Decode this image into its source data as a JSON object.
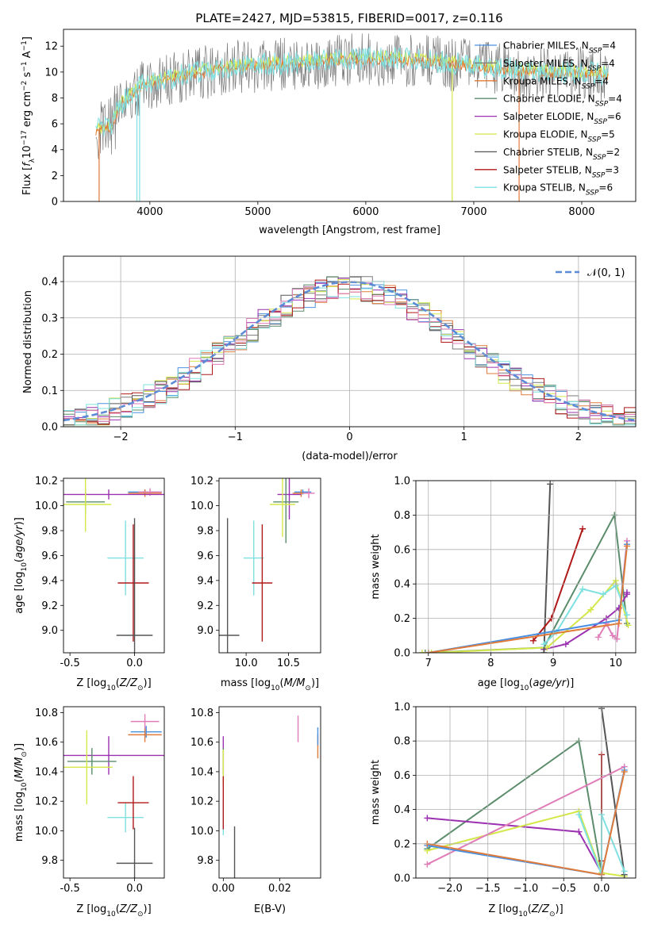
{
  "figure_title": "PLATE=2427, MJD=53815, FIBERID=0017, z=0.116",
  "colors": {
    "chabrier_miles": "#4a90e2",
    "salpeter_miles": "#7a7a7a",
    "kroupa_miles": "#e07b39",
    "chabrier_elodie": "#5b8c6b",
    "salpeter_elodie": "#9b30b0",
    "kroupa_elodie": "#d4e84a",
    "chabrier_stelib": "#555555",
    "salpeter_stelib": "#b01818",
    "kroupa_stelib": "#7ee0e0",
    "pink": "#e07cb8",
    "normal_curve": "#5b8bd6"
  },
  "chart_data": [
    {
      "id": "spectrum",
      "type": "line",
      "title": "PLATE=2427, MJD=53815, FIBERID=0017, z=0.116",
      "xlabel": "wavelength [Angstrom, rest frame]",
      "ylabel": "Flux [f_λ 10^-17 erg cm^-2 s^-1 A^-1]",
      "xlim": [
        3200,
        8500
      ],
      "ylim": [
        0,
        13.3
      ],
      "xticks": [
        4000,
        5000,
        6000,
        7000,
        8000
      ],
      "yticks": [
        0,
        2,
        4,
        6,
        8,
        10,
        12
      ],
      "grid": false,
      "legend_position": "right",
      "legend": [
        {
          "label": "Chabrier MILES, N",
          "sub": "SSP",
          "suffix": "=4",
          "color": "#4a90e2"
        },
        {
          "label": "Salpeter MILES, N",
          "sub": "SSP",
          "suffix": "=4",
          "color": "#7a7a7a"
        },
        {
          "label": "Kroupa MILES, N",
          "sub": "SSP",
          "suffix": "=4",
          "color": "#e07b39"
        },
        {
          "label": "Chabrier ELODIE, N",
          "sub": "SSP",
          "suffix": "=4",
          "color": "#5b8c6b"
        },
        {
          "label": "Salpeter ELODIE, N",
          "sub": "SSP",
          "suffix": "=6",
          "color": "#9b30b0"
        },
        {
          "label": "Kroupa ELODIE, N",
          "sub": "SSP",
          "suffix": "=5",
          "color": "#d4e84a"
        },
        {
          "label": "Chabrier STELIB, N",
          "sub": "SSP",
          "suffix": "=2",
          "color": "#555555"
        },
        {
          "label": "Salpeter STELIB, N",
          "sub": "SSP",
          "suffix": "=3",
          "color": "#b01818"
        },
        {
          "label": "Kroupa STELIB, N",
          "sub": "SSP",
          "suffix": "=6",
          "color": "#7ee0e0"
        }
      ],
      "continuum_points": [
        [
          3500,
          5.4
        ],
        [
          3650,
          5.8
        ],
        [
          3700,
          7.0
        ],
        [
          3800,
          8.0
        ],
        [
          3950,
          9.0
        ],
        [
          4100,
          9.3
        ],
        [
          4400,
          9.8
        ],
        [
          4800,
          10.4
        ],
        [
          5300,
          10.6
        ],
        [
          5800,
          10.9
        ],
        [
          6200,
          11.0
        ],
        [
          6600,
          10.8
        ],
        [
          7000,
          10.4
        ],
        [
          7400,
          10.1
        ],
        [
          7800,
          9.9
        ],
        [
          8250,
          9.8
        ]
      ]
    },
    {
      "id": "residual_histogram",
      "type": "line",
      "xlabel": "(data-model)/error",
      "ylabel": "Normed distribution",
      "xlim": [
        -2.5,
        2.5
      ],
      "ylim": [
        0,
        0.47
      ],
      "xticks": [
        -2,
        -1,
        0,
        1,
        2
      ],
      "xtick_labels": [
        "−2",
        "−1",
        "0",
        "1",
        "2"
      ],
      "yticks": [
        0.0,
        0.1,
        0.2,
        0.3,
        0.4
      ],
      "grid": true,
      "legend_position": "top-right",
      "legend_label": "𝒩(0, 1)",
      "bins": 50
    },
    {
      "id": "age_vs_Z",
      "type": "scatter",
      "xlabel": "Z [log10(Z/Z☉)]",
      "ylabel": "age  [log10(age/yr)]",
      "xlim": [
        -0.55,
        0.23
      ],
      "ylim": [
        8.82,
        10.22
      ],
      "xticks": [
        -0.5,
        0.0
      ],
      "yticks": [
        9.0,
        9.2,
        9.4,
        9.6,
        9.8,
        10.0,
        10.2
      ],
      "points": [
        {
          "color": "#4a90e2",
          "x": 0.08,
          "xerr": 0.13,
          "y": 10.11,
          "yerr": 0.02
        },
        {
          "color": "#e07b39",
          "x": 0.08,
          "xerr": 0.13,
          "y": 10.1,
          "yerr": 0.03
        },
        {
          "color": "#e07cb8",
          "x": 0.12,
          "xerr": 0.09,
          "y": 10.11,
          "yerr": 0.03
        },
        {
          "color": "#9b30b0",
          "x": -0.2,
          "xerr": 0.5,
          "y": 10.09,
          "yerr": 0.04
        },
        {
          "color": "#5b8c6b",
          "x": -0.38,
          "xerr": 0.15,
          "y": 10.03,
          "yerr": 0.1
        },
        {
          "color": "#d4e84a",
          "x": -0.38,
          "xerr": 0.2,
          "y": 10.01,
          "yerr": 0.22
        },
        {
          "color": "#7ee0e0",
          "x": -0.07,
          "xerr": 0.14,
          "y": 9.58,
          "yerr": 0.3
        },
        {
          "color": "#b01818",
          "x": -0.01,
          "xerr": 0.12,
          "y": 9.38,
          "yerr": 0.47
        },
        {
          "color": "#555555",
          "x": 0.0,
          "xerr": 0.14,
          "y": 8.96,
          "yerr": 0.94
        }
      ]
    },
    {
      "id": "age_vs_mass",
      "type": "scatter",
      "xlabel": "mass [log10(M/M☉)]",
      "xlim": [
        9.68,
        10.88
      ],
      "ylim": [
        8.82,
        10.22
      ],
      "xticks": [
        10.0,
        10.5
      ],
      "yticks": [
        9.0,
        9.2,
        9.4,
        9.6,
        9.8,
        10.0,
        10.2
      ],
      "points": [
        {
          "color": "#4a90e2",
          "x": 10.67,
          "xerr": 0.1,
          "y": 10.11,
          "yerr": 0.02
        },
        {
          "color": "#e07b39",
          "x": 10.65,
          "xerr": 0.1,
          "y": 10.1,
          "yerr": 0.03
        },
        {
          "color": "#e07cb8",
          "x": 10.74,
          "xerr": 0.07,
          "y": 10.1,
          "yerr": 0.04
        },
        {
          "color": "#9b30b0",
          "x": 10.51,
          "xerr": 0.14,
          "y": 10.09,
          "yerr": 0.2
        },
        {
          "color": "#5b8c6b",
          "x": 10.47,
          "xerr": 0.15,
          "y": 10.03,
          "yerr": 0.33
        },
        {
          "color": "#d4e84a",
          "x": 10.43,
          "xerr": 0.15,
          "y": 10.01,
          "yerr": 0.26
        },
        {
          "color": "#7ee0e0",
          "x": 10.09,
          "xerr": 0.12,
          "y": 9.58,
          "yerr": 0.3
        },
        {
          "color": "#b01818",
          "x": 10.19,
          "xerr": 0.12,
          "y": 9.38,
          "yerr": 0.47
        },
        {
          "color": "#555555",
          "x": 9.78,
          "xerr": 0.14,
          "y": 8.96,
          "yerr": 0.94
        }
      ]
    },
    {
      "id": "mass_weight_vs_age",
      "type": "line",
      "xlabel": "age  [log10(age/yr)]",
      "ylabel": "mass weight",
      "xlim": [
        6.8,
        10.32
      ],
      "ylim": [
        0,
        1.0
      ],
      "xticks": [
        7,
        8,
        9,
        10
      ],
      "yticks": [
        0.0,
        0.2,
        0.4,
        0.6,
        0.8,
        1.0
      ],
      "grid": true,
      "series": [
        {
          "color": "#5b8c6b",
          "x": [
            6.95,
            8.85,
            9.98,
            10.18
          ],
          "y": [
            0.0,
            0.03,
            0.8,
            0.17
          ]
        },
        {
          "color": "#9b30b0",
          "x": [
            8.85,
            9.2,
            9.85,
            10.05,
            10.18,
            10.18
          ],
          "y": [
            0.02,
            0.05,
            0.2,
            0.26,
            0.34,
            0.35
          ]
        },
        {
          "color": "#d4e84a",
          "x": [
            6.9,
            7.05,
            8.9,
            9.6,
            10.0,
            10.2
          ],
          "y": [
            0.0,
            0.0,
            0.03,
            0.25,
            0.42,
            0.16
          ]
        },
        {
          "color": "#555555",
          "x": [
            8.85,
            8.95
          ],
          "y": [
            0.0,
            0.98
          ]
        },
        {
          "color": "#b01818",
          "x": [
            8.68,
            8.97,
            9.47
          ],
          "y": [
            0.07,
            0.2,
            0.72
          ]
        },
        {
          "color": "#7ee0e0",
          "x": [
            8.85,
            9.05,
            9.47,
            9.8,
            10.0,
            10.18
          ],
          "y": [
            0.05,
            0.12,
            0.37,
            0.34,
            0.39,
            0.22
          ]
        },
        {
          "color": "#e07cb8",
          "x": [
            9.72,
            9.85,
            9.95,
            10.02,
            10.18
          ],
          "y": [
            0.09,
            0.17,
            0.1,
            0.08,
            0.65
          ]
        },
        {
          "color": "#4a90e2",
          "x": [
            7.0,
            10.05,
            10.18
          ],
          "y": [
            0.0,
            0.19,
            0.63
          ]
        },
        {
          "color": "#e07b39",
          "x": [
            7.0,
            10.05,
            10.18
          ],
          "y": [
            0.0,
            0.17,
            0.62
          ]
        }
      ]
    },
    {
      "id": "mass_vs_Z",
      "type": "scatter",
      "xlabel": "Z [log10(Z/Z☉)]",
      "ylabel": "mass [log10(M/M☉)]",
      "xlim": [
        -0.55,
        0.23
      ],
      "ylim": [
        9.68,
        10.84
      ],
      "xticks": [
        -0.5,
        0.0
      ],
      "yticks": [
        9.8,
        10.0,
        10.2,
        10.4,
        10.6,
        10.8
      ],
      "points": [
        {
          "color": "#4a90e2",
          "x": 0.09,
          "xerr": 0.12,
          "y": 10.67,
          "yerr": 0.04
        },
        {
          "color": "#e07b39",
          "x": 0.08,
          "xerr": 0.13,
          "y": 10.65,
          "yerr": 0.05
        },
        {
          "color": "#e07cb8",
          "x": 0.08,
          "xerr": 0.11,
          "y": 10.74,
          "yerr": 0.05
        },
        {
          "color": "#9b30b0",
          "x": -0.2,
          "xerr": 0.5,
          "y": 10.51,
          "yerr": 0.13
        },
        {
          "color": "#5b8c6b",
          "x": -0.33,
          "xerr": 0.19,
          "y": 10.47,
          "yerr": 0.09
        },
        {
          "color": "#d4e84a",
          "x": -0.37,
          "xerr": 0.2,
          "y": 10.43,
          "yerr": 0.25
        },
        {
          "color": "#7ee0e0",
          "x": -0.07,
          "xerr": 0.14,
          "y": 10.09,
          "yerr": 0.1
        },
        {
          "color": "#b01818",
          "x": -0.01,
          "xerr": 0.12,
          "y": 10.19,
          "yerr": 0.18
        },
        {
          "color": "#555555",
          "x": 0.0,
          "xerr": 0.14,
          "y": 9.78,
          "yerr": 0.24
        }
      ]
    },
    {
      "id": "mass_vs_EBV",
      "type": "scatter",
      "xlabel": "E(B-V)",
      "xlim": [
        -0.0015,
        0.0345
      ],
      "ylim": [
        9.68,
        10.84
      ],
      "xticks": [
        0.0,
        0.02
      ],
      "yticks": [
        9.8,
        10.0,
        10.2,
        10.4,
        10.6,
        10.8
      ],
      "points": [
        {
          "color": "#e07cb8",
          "x": 0.0265,
          "xerr": 0.0,
          "y": 10.69,
          "yerr": 0.09
        },
        {
          "color": "#e07b39",
          "x": 0.0335,
          "xerr": 0.0,
          "y": 10.57,
          "yerr": 0.08
        },
        {
          "color": "#4a90e2",
          "x": 0.0335,
          "xerr": 0.0,
          "y": 10.64,
          "yerr": 0.06
        },
        {
          "color": "#9b30b0",
          "x": 0.0,
          "xerr": 0.0,
          "y": 10.51,
          "yerr": 0.13
        },
        {
          "color": "#5b8c6b",
          "x": 0.0,
          "xerr": 0.0,
          "y": 10.47,
          "yerr": 0.09
        },
        {
          "color": "#d4e84a",
          "x": 0.0,
          "xerr": 0.0,
          "y": 10.43,
          "yerr": 0.12
        },
        {
          "color": "#7ee0e0",
          "x": 0.0,
          "xerr": 0.0,
          "y": 10.09,
          "yerr": 0.12
        },
        {
          "color": "#b01818",
          "x": 0.0,
          "xerr": 0.0,
          "y": 10.19,
          "yerr": 0.18
        },
        {
          "color": "#555555",
          "x": 0.004,
          "xerr": 0.0,
          "y": 9.85,
          "yerr": 0.18
        }
      ]
    },
    {
      "id": "mass_weight_vs_Z",
      "type": "line",
      "xlabel": "Z [log10(Z/Z☉)]",
      "ylabel": "mass weight",
      "xlim": [
        -2.45,
        0.45
      ],
      "ylim": [
        0,
        1.0
      ],
      "xticks": [
        -2.0,
        -1.5,
        -1.0,
        -0.5,
        0.0
      ],
      "xtick_labels": [
        "−2.0",
        "−1.5",
        "−1.0",
        "−0.5",
        "0.0"
      ],
      "yticks": [
        0.0,
        0.2,
        0.4,
        0.6,
        0.8,
        1.0
      ],
      "grid": true,
      "series": [
        {
          "color": "#5b8c6b",
          "x": [
            -2.3,
            -0.3,
            0.0,
            0.0
          ],
          "y": [
            0.17,
            0.8,
            0.03,
            0.0
          ]
        },
        {
          "color": "#9b30b0",
          "x": [
            -2.3,
            -0.3,
            0.0
          ],
          "y": [
            0.35,
            0.27,
            0.03
          ]
        },
        {
          "color": "#d4e84a",
          "x": [
            -2.3,
            -0.3,
            0.0,
            0.3
          ],
          "y": [
            0.16,
            0.39,
            0.03,
            0.01
          ]
        },
        {
          "color": "#555555",
          "x": [
            0.0,
            0.3
          ],
          "y": [
            0.99,
            0.02
          ]
        },
        {
          "color": "#b01818",
          "x": [
            0.0,
            0.0
          ],
          "y": [
            0.72,
            0.1
          ]
        },
        {
          "color": "#7ee0e0",
          "x": [
            -0.3,
            0.0,
            0.0,
            0.3
          ],
          "y": [
            0.37,
            0.02,
            0.37,
            0.04
          ]
        },
        {
          "color": "#e07cb8",
          "x": [
            -2.3,
            0.3
          ],
          "y": [
            0.08,
            0.65
          ]
        },
        {
          "color": "#4a90e2",
          "x": [
            -2.3,
            0.0,
            0.3
          ],
          "y": [
            0.19,
            0.02,
            0.63
          ]
        },
        {
          "color": "#e07b39",
          "x": [
            -2.3,
            0.0,
            0.3
          ],
          "y": [
            0.2,
            0.02,
            0.62
          ]
        }
      ]
    }
  ]
}
